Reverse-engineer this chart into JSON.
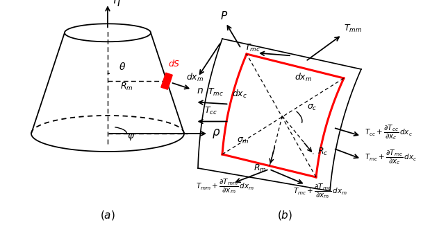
{
  "fig_width": 6.32,
  "fig_height": 3.28,
  "bg_color": "#ffffff"
}
